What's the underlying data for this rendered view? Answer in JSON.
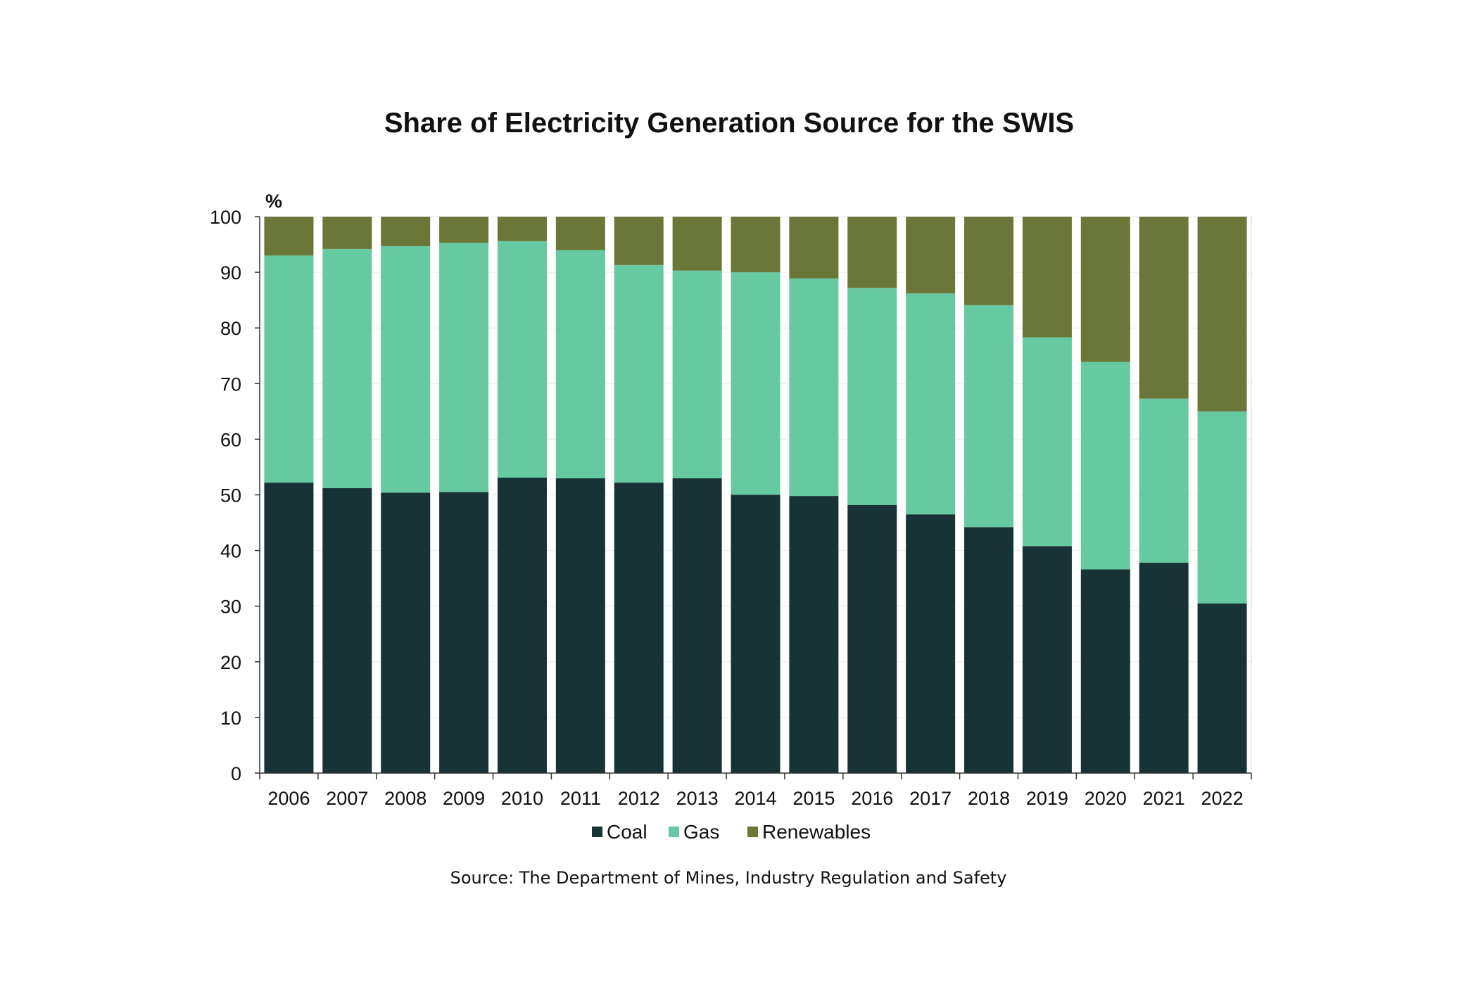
{
  "chart_data": {
    "type": "bar",
    "stacked": true,
    "title": "Share of Electricity Generation Source for the SWIS",
    "ylabel": "%",
    "xlabel": "",
    "ylim": [
      0,
      100
    ],
    "yticks": [
      0,
      10,
      20,
      30,
      40,
      50,
      60,
      70,
      80,
      90,
      100
    ],
    "categories": [
      "2006",
      "2007",
      "2008",
      "2009",
      "2010",
      "2011",
      "2012",
      "2013",
      "2014",
      "2015",
      "2016",
      "2017",
      "2018",
      "2019",
      "2020",
      "2021",
      "2022"
    ],
    "series": [
      {
        "name": "Coal",
        "color": "#183335",
        "values": [
          52.2,
          51.2,
          50.4,
          50.5,
          53.1,
          53.0,
          52.2,
          53.0,
          50.0,
          49.8,
          48.2,
          46.5,
          44.2,
          40.8,
          36.6,
          37.8,
          30.5
        ]
      },
      {
        "name": "Gas",
        "color": "#66c9a2",
        "values": [
          40.8,
          43.0,
          44.3,
          44.8,
          42.5,
          41.0,
          39.1,
          37.3,
          40.0,
          39.1,
          39.0,
          39.7,
          39.9,
          37.5,
          37.3,
          29.5,
          34.5
        ]
      },
      {
        "name": "Renewables",
        "color": "#6b7639",
        "values": [
          7.0,
          5.8,
          5.3,
          4.7,
          4.4,
          6.0,
          8.7,
          9.7,
          10.0,
          11.1,
          12.8,
          13.8,
          15.9,
          21.7,
          26.1,
          32.7,
          35.0
        ]
      }
    ],
    "legend": "bottom",
    "grid": true
  },
  "source": "Source: The Department of Mines, Industry Regulation and Safety"
}
